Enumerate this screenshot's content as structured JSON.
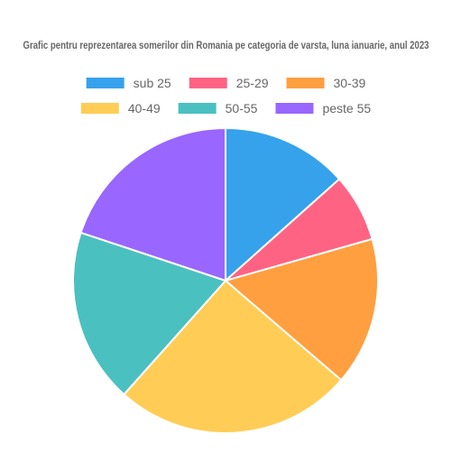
{
  "chart_data": {
    "type": "pie",
    "title": "Grafic pentru reprezentarea somerilor din Romania pe categoria de varsta, luna ianuarie, anul 2023",
    "categories": [
      "sub 25",
      "25-29",
      "30-39",
      "40-49",
      "50-55",
      "peste 55"
    ],
    "values": [
      13.4,
      7.2,
      15.7,
      25.3,
      18.5,
      19.9
    ],
    "colors": [
      "#36a2eb",
      "#ff6384",
      "#ff9f40",
      "#ffcd56",
      "#4bc0c0",
      "#9966ff"
    ],
    "legend_position": "top",
    "slice_border_color": "#ffffff"
  }
}
